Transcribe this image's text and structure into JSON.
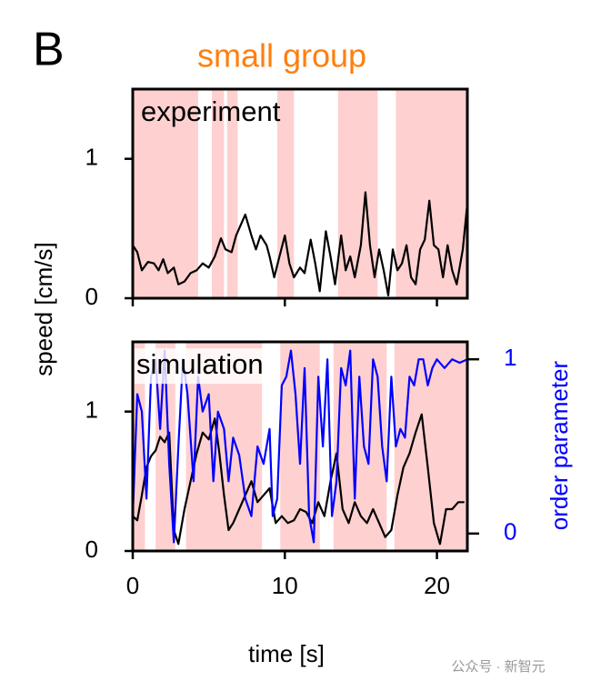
{
  "panel_label": "B",
  "watermark": "公众号 · 新智元",
  "chart_data": [
    {
      "type": "line",
      "title": "small group",
      "title_color": "#ff7f0e",
      "annotation": "experiment",
      "ylabel": "speed [cm/s]",
      "xlim": [
        0,
        22
      ],
      "xticks": [
        0,
        10,
        20
      ],
      "ylim": [
        0,
        1.5
      ],
      "yticks": [
        0,
        1
      ],
      "shade_color": "#ffd0d0",
      "shaded": [
        [
          0,
          4.3
        ],
        [
          5.2,
          6.0
        ],
        [
          6.2,
          6.9
        ],
        [
          9.5,
          10.6
        ],
        [
          13.5,
          16.1
        ],
        [
          17.3,
          22
        ]
      ],
      "series": [
        {
          "color": "#000000",
          "x": [
            0,
            0.3,
            0.6,
            1.0,
            1.4,
            1.7,
            2.0,
            2.3,
            2.7,
            3.0,
            3.4,
            3.8,
            4.2,
            4.6,
            5.0,
            5.4,
            5.8,
            6.1,
            6.5,
            6.8,
            7.2,
            7.4,
            7.8,
            8.1,
            8.4,
            8.8,
            9.0,
            9.3,
            9.6,
            10.0,
            10.3,
            10.6,
            11.0,
            11.3,
            11.7,
            12.0,
            12.3,
            12.7,
            13.0,
            13.3,
            13.7,
            14.0,
            14.3,
            14.6,
            15.0,
            15.3,
            15.6,
            15.9,
            16.2,
            16.5,
            16.8,
            17.1,
            17.4,
            17.7,
            18.0,
            18.3,
            18.6,
            18.9,
            19.2,
            19.5,
            19.8,
            20.1,
            20.4,
            20.7,
            21.0,
            21.3,
            21.7,
            22.0
          ],
          "values": [
            0.38,
            0.33,
            0.2,
            0.26,
            0.25,
            0.2,
            0.28,
            0.18,
            0.22,
            0.1,
            0.12,
            0.18,
            0.2,
            0.25,
            0.22,
            0.3,
            0.43,
            0.35,
            0.33,
            0.45,
            0.55,
            0.6,
            0.45,
            0.35,
            0.45,
            0.38,
            0.3,
            0.15,
            0.28,
            0.45,
            0.25,
            0.15,
            0.22,
            0.18,
            0.42,
            0.25,
            0.05,
            0.48,
            0.3,
            0.1,
            0.45,
            0.2,
            0.3,
            0.15,
            0.38,
            0.76,
            0.38,
            0.15,
            0.35,
            0.2,
            0.02,
            0.35,
            0.2,
            0.25,
            0.38,
            0.15,
            0.1,
            0.35,
            0.42,
            0.7,
            0.38,
            0.35,
            0.15,
            0.38,
            0.2,
            0.1,
            0.35,
            0.68
          ]
        }
      ]
    },
    {
      "type": "line",
      "annotation": "simulation",
      "xlabel": "time [s]",
      "y2label": "order parameter",
      "y2_color": "#0000ff",
      "xlim": [
        0,
        22
      ],
      "xticks": [
        0,
        10,
        20
      ],
      "ylim": [
        0,
        1.5
      ],
      "yticks": [
        0,
        1
      ],
      "y2lim": [
        -0.1,
        1.1
      ],
      "y2ticks": [
        0,
        1
      ],
      "shade_color": "#ffd0d0",
      "shaded": [
        [
          0,
          0.8
        ],
        [
          1.5,
          2.8
        ],
        [
          3.5,
          8.5
        ],
        [
          9.7,
          12.3
        ],
        [
          13.2,
          16.7
        ],
        [
          17.2,
          22
        ]
      ],
      "series": [
        {
          "color": "#000000",
          "x": [
            0,
            0.3,
            0.6,
            0.9,
            1.2,
            1.5,
            1.8,
            2.1,
            2.4,
            2.7,
            3.0,
            3.4,
            3.8,
            4.2,
            4.6,
            5.0,
            5.4,
            5.7,
            6.0,
            6.3,
            6.6,
            7.0,
            7.4,
            7.8,
            8.2,
            8.6,
            9.0,
            9.4,
            9.8,
            10.2,
            10.6,
            11.0,
            11.4,
            11.8,
            12.2,
            12.6,
            13.0,
            13.4,
            13.8,
            14.2,
            14.6,
            15.0,
            15.4,
            15.8,
            16.2,
            16.6,
            17.0,
            17.4,
            17.8,
            18.2,
            18.6,
            19.0,
            19.4,
            19.8,
            20.2,
            20.6,
            21.0,
            21.4,
            21.8
          ],
          "values": [
            0.25,
            0.22,
            0.4,
            0.6,
            0.68,
            0.72,
            0.82,
            0.78,
            0.85,
            0.15,
            0.05,
            0.3,
            0.5,
            0.7,
            0.85,
            0.8,
            0.95,
            0.7,
            0.4,
            0.15,
            0.2,
            0.3,
            0.4,
            0.5,
            0.35,
            0.4,
            0.45,
            0.2,
            0.25,
            0.2,
            0.22,
            0.3,
            0.28,
            0.2,
            0.35,
            0.25,
            0.5,
            0.7,
            0.3,
            0.2,
            0.35,
            0.25,
            0.2,
            0.3,
            0.2,
            0.1,
            0.15,
            0.4,
            0.6,
            0.7,
            0.85,
            0.98,
            0.6,
            0.2,
            0.05,
            0.3,
            0.3,
            0.35,
            0.35
          ]
        },
        {
          "color": "#0000ff",
          "axis": "y2",
          "x": [
            0,
            0.3,
            0.6,
            0.9,
            1.2,
            1.5,
            1.8,
            2.1,
            2.4,
            2.7,
            3.0,
            3.3,
            3.6,
            4.0,
            4.3,
            4.6,
            5.0,
            5.3,
            5.6,
            6.0,
            6.3,
            6.6,
            7.0,
            7.4,
            7.8,
            8.2,
            8.6,
            9.0,
            9.2,
            9.5,
            9.8,
            10.1,
            10.4,
            10.7,
            11.0,
            11.3,
            11.6,
            11.9,
            12.2,
            12.5,
            12.8,
            13.1,
            13.4,
            13.7,
            14.0,
            14.3,
            14.6,
            14.9,
            15.2,
            15.5,
            15.8,
            16.1,
            16.4,
            16.7,
            17.0,
            17.3,
            17.6,
            17.9,
            18.2,
            18.5,
            18.8,
            19.1,
            19.4,
            19.7,
            20.0,
            20.5,
            21.0,
            21.5,
            22.0
          ],
          "values": [
            0.1,
            0.8,
            0.7,
            0.2,
            0.9,
            1.0,
            0.6,
            1.05,
            0.4,
            -0.05,
            0.5,
            1.0,
            0.8,
            0.3,
            0.9,
            0.7,
            0.8,
            0.3,
            0.7,
            0.6,
            0.3,
            0.55,
            0.45,
            0.2,
            0.1,
            0.5,
            0.4,
            0.6,
            0.1,
            0.2,
            0.85,
            0.9,
            1.05,
            0.8,
            0.4,
            0.95,
            0.1,
            -0.05,
            0.9,
            0.5,
            1.0,
            0.1,
            0.3,
            0.95,
            0.85,
            1.05,
            0.2,
            0.9,
            0.5,
            0.4,
            1.0,
            0.9,
            0.5,
            0.3,
            0.9,
            0.5,
            0.6,
            0.55,
            0.9,
            0.85,
            1.0,
            1.0,
            0.85,
            0.95,
            1.0,
            0.95,
            1.0,
            0.98,
            1.0
          ]
        }
      ]
    }
  ]
}
